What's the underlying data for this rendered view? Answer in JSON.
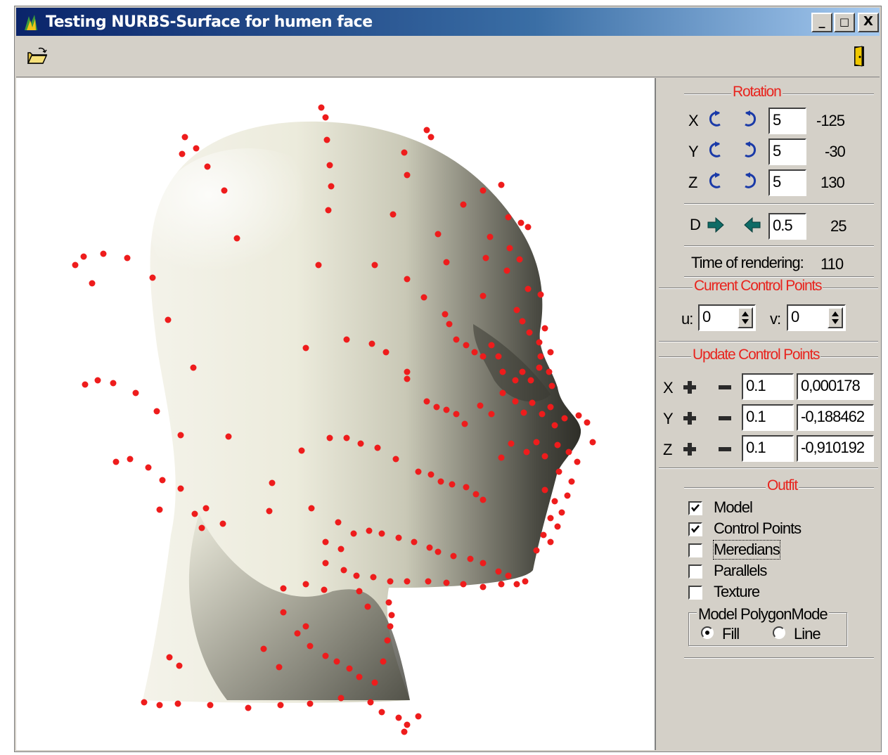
{
  "window": {
    "title": "Testing NURBS-Surface for humen face",
    "controls": {
      "minimize": "_",
      "maximize": "□",
      "close": "X"
    }
  },
  "toolbar": {
    "open_icon": "open-folder-icon",
    "exit_icon": "exit-door-icon"
  },
  "rotation": {
    "title": "Rotation",
    "rows": [
      {
        "axis": "X",
        "step": "5",
        "value": "-125"
      },
      {
        "axis": "Y",
        "step": "5",
        "value": "-30"
      },
      {
        "axis": "Z",
        "step": "5",
        "value": "130"
      }
    ],
    "distance": {
      "axis": "D",
      "step": "0.5",
      "value": "25"
    }
  },
  "rendering": {
    "label": "Time of rendering:",
    "value": "110"
  },
  "current_control_points": {
    "title": "Current Control Points",
    "u_label": "u:",
    "u_value": "0",
    "v_label": "v:",
    "v_value": "0"
  },
  "update_control_points": {
    "title": "Update Control Points",
    "rows": [
      {
        "axis": "X",
        "step": "0.1",
        "value": "0,000178"
      },
      {
        "axis": "Y",
        "step": "0.1",
        "value": "-0,188462"
      },
      {
        "axis": "Z",
        "step": "0.1",
        "value": "-0,910192"
      }
    ]
  },
  "outfit": {
    "title": "Outfit",
    "options": [
      {
        "label": "Model",
        "checked": true
      },
      {
        "label": "Control Points",
        "checked": true
      },
      {
        "label": "Meredians",
        "checked": false
      },
      {
        "label": "Parallels",
        "checked": false
      },
      {
        "label": "Texture",
        "checked": false
      }
    ],
    "polygon_mode": {
      "title": "Model PolygonMode",
      "fill_label": "Fill",
      "line_label": "Line",
      "selected": "Fill"
    }
  },
  "colors": {
    "control_point": "#ee1c1c",
    "section_title": "#e8241e",
    "panel": "#d4d0c8"
  }
}
